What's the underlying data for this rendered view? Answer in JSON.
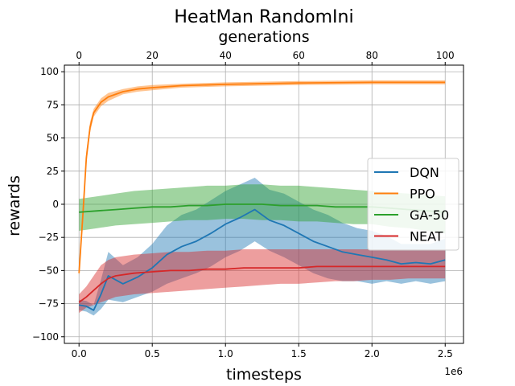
{
  "chart_data": {
    "type": "line",
    "title": "HeatMan RandomIni",
    "xlabel": "timesteps",
    "ylabel": "rewards",
    "x_offset_label": "1e6",
    "x2label": "generations",
    "xlim": [
      -0.1,
      2.625
    ],
    "ylim": [
      -105,
      105
    ],
    "x2lim": [
      -4,
      105
    ],
    "xticks": [
      0.0,
      0.5,
      1.0,
      1.5,
      2.0,
      2.5
    ],
    "xtick_labels": [
      "0.0",
      "0.5",
      "1.0",
      "1.5",
      "2.0",
      "2.5"
    ],
    "x2ticks": [
      0,
      20,
      40,
      60,
      80,
      100
    ],
    "x2tick_labels": [
      "0",
      "20",
      "40",
      "60",
      "80",
      "100"
    ],
    "yticks": [
      -100,
      -75,
      -50,
      -25,
      0,
      25,
      50,
      75,
      100
    ],
    "ytick_labels": [
      "−100",
      "−75",
      "−50",
      "−25",
      "0",
      "25",
      "50",
      "75",
      "100"
    ],
    "grid": true,
    "legend_position": "center-right",
    "series": [
      {
        "name": "DQN",
        "color": "#1f77b4",
        "axis": "timesteps",
        "x": [
          0.0,
          0.05,
          0.1,
          0.15,
          0.2,
          0.3,
          0.4,
          0.5,
          0.6,
          0.7,
          0.8,
          0.9,
          1.0,
          1.1,
          1.2,
          1.3,
          1.4,
          1.5,
          1.6,
          1.7,
          1.8,
          1.9,
          2.0,
          2.1,
          2.2,
          2.3,
          2.4,
          2.5
        ],
        "y": [
          -76,
          -77,
          -80,
          -68,
          -54,
          -60,
          -55,
          -48,
          -38,
          -32,
          -28,
          -22,
          -15,
          -10,
          -4,
          -12,
          -16,
          -22,
          -28,
          -32,
          -36,
          -38,
          -40,
          -42,
          -45,
          -44,
          -45,
          -42
        ],
        "lower": [
          -80,
          -81,
          -84,
          -79,
          -72,
          -74,
          -70,
          -66,
          -60,
          -56,
          -52,
          -47,
          -40,
          -35,
          -28,
          -35,
          -40,
          -46,
          -52,
          -56,
          -58,
          -58,
          -60,
          -58,
          -60,
          -58,
          -60,
          -58
        ],
        "upper": [
          -72,
          -73,
          -76,
          -57,
          -36,
          -46,
          -40,
          -30,
          -16,
          -8,
          -4,
          3,
          10,
          15,
          20,
          11,
          8,
          2,
          -4,
          -8,
          -14,
          -18,
          -20,
          -24,
          -30,
          -30,
          -30,
          -26
        ]
      },
      {
        "name": "PPO",
        "color": "#ff7f0e",
        "axis": "timesteps",
        "x": [
          0.0,
          0.025,
          0.05,
          0.075,
          0.1,
          0.15,
          0.2,
          0.3,
          0.4,
          0.5,
          0.7,
          1.0,
          1.5,
          2.0,
          2.5
        ],
        "y": [
          -52,
          -10,
          35,
          58,
          69,
          77,
          81,
          85,
          87,
          88,
          89.5,
          90.5,
          91.5,
          92,
          92
        ],
        "lower": [
          -54,
          -15,
          30,
          54,
          66,
          74,
          78,
          83,
          85,
          86,
          88,
          89,
          90,
          90.5,
          90.5
        ],
        "upper": [
          -50,
          -5,
          40,
          62,
          72,
          80,
          84,
          87,
          89,
          90,
          91,
          92,
          93,
          93.5,
          93.5
        ]
      },
      {
        "name": "GA-50",
        "color": "#2ca02c",
        "axis": "generations",
        "x": [
          0,
          5,
          10,
          15,
          20,
          25,
          30,
          35,
          40,
          45,
          50,
          55,
          60,
          65,
          70,
          75,
          80,
          85,
          90,
          95,
          100
        ],
        "y": [
          -6,
          -5,
          -4,
          -3,
          -2,
          -2,
          -1,
          -1,
          0,
          0,
          0,
          -1,
          -1,
          -1,
          -2,
          -2,
          -2,
          -3,
          -4,
          -5,
          -6
        ],
        "lower": [
          -20,
          -18,
          -16,
          -15,
          -14,
          -13,
          -12,
          -12,
          -11,
          -11,
          -12,
          -12,
          -13,
          -13,
          -14,
          -15,
          -15,
          -17,
          -18,
          -20,
          -22
        ],
        "upper": [
          4,
          6,
          8,
          10,
          11,
          12,
          13,
          14,
          14,
          15,
          15,
          14,
          14,
          13,
          12,
          11,
          10,
          9,
          8,
          7,
          6
        ]
      },
      {
        "name": "NEAT",
        "color": "#d62728",
        "axis": "generations",
        "x": [
          0,
          2,
          4,
          6,
          8,
          10,
          15,
          20,
          25,
          30,
          35,
          40,
          45,
          50,
          55,
          60,
          65,
          70,
          75,
          80,
          85,
          90,
          95,
          100
        ],
        "y": [
          -74,
          -70,
          -65,
          -60,
          -56,
          -54,
          -52,
          -51,
          -50,
          -50,
          -49,
          -49,
          -48,
          -48,
          -48,
          -48,
          -47,
          -47,
          -47,
          -47,
          -47,
          -47,
          -47,
          -47
        ],
        "lower": [
          -82,
          -78,
          -76,
          -74,
          -72,
          -70,
          -68,
          -67,
          -66,
          -65,
          -64,
          -63,
          -62,
          -61,
          -60,
          -60,
          -59,
          -58,
          -58,
          -57,
          -57,
          -56,
          -56,
          -56
        ],
        "upper": [
          -68,
          -62,
          -54,
          -46,
          -42,
          -40,
          -38,
          -37,
          -36,
          -36,
          -35,
          -35,
          -34,
          -34,
          -34,
          -34,
          -34,
          -34,
          -34,
          -34,
          -34,
          -34,
          -34,
          -34
        ]
      }
    ]
  }
}
